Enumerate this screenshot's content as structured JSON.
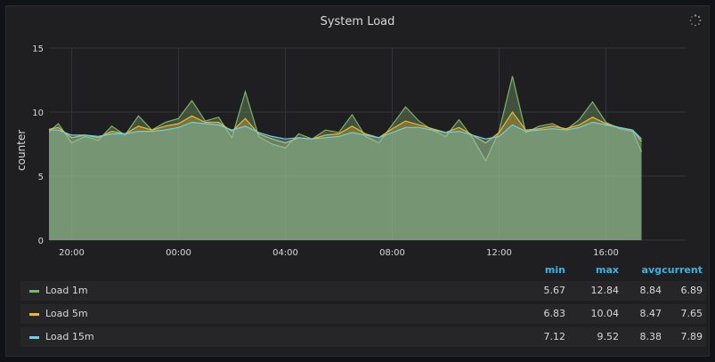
{
  "panel": {
    "title": "System Load"
  },
  "chart_data": {
    "type": "area",
    "title": "System Load",
    "ylabel": "counter",
    "ylim": [
      0,
      15
    ],
    "yticks": [
      "0",
      "5",
      "10",
      "15"
    ],
    "xticks": [
      "20:00",
      "00:00",
      "04:00",
      "08:00",
      "12:00",
      "16:00"
    ],
    "x": [
      "18:00",
      "18:30",
      "19:00",
      "19:30",
      "20:00",
      "20:30",
      "21:00",
      "21:30",
      "22:00",
      "22:30",
      "23:00",
      "23:30",
      "00:00",
      "00:30",
      "01:00",
      "01:30",
      "02:00",
      "02:30",
      "03:00",
      "03:30",
      "04:00",
      "04:30",
      "05:00",
      "05:30",
      "06:00",
      "06:30",
      "07:00",
      "07:30",
      "08:00",
      "08:30",
      "09:00",
      "09:30",
      "10:00",
      "10:30",
      "11:00",
      "11:30",
      "12:00",
      "12:30",
      "13:00",
      "13:30",
      "14:00",
      "14:30",
      "15:00",
      "15:30",
      "16:00",
      "16:30",
      "17:00",
      "17:20"
    ],
    "series": [
      {
        "name": "Load 1m",
        "color": "#7eb26d",
        "values": [
          8.6,
          9.8,
          8.2,
          9.1,
          7.6,
          8.1,
          7.8,
          8.9,
          8.2,
          9.7,
          8.6,
          9.2,
          9.5,
          10.9,
          9.3,
          9.6,
          8.0,
          11.6,
          8.1,
          7.5,
          7.2,
          8.3,
          7.9,
          8.6,
          8.4,
          9.8,
          8.1,
          7.6,
          9.0,
          10.4,
          9.3,
          8.6,
          8.1,
          9.4,
          8.0,
          6.2,
          8.5,
          12.8,
          8.4,
          8.9,
          9.1,
          8.6,
          9.4,
          10.8,
          9.2,
          8.7,
          8.5,
          6.9
        ]
      },
      {
        "name": "Load 5m",
        "color": "#eab839",
        "values": [
          8.7,
          9.3,
          8.6,
          8.8,
          8.0,
          8.2,
          8.0,
          8.5,
          8.3,
          8.9,
          8.6,
          8.9,
          9.1,
          9.7,
          9.2,
          9.2,
          8.5,
          9.5,
          8.3,
          7.9,
          7.6,
          8.0,
          7.9,
          8.2,
          8.3,
          8.9,
          8.3,
          8.0,
          8.7,
          9.3,
          9.0,
          8.7,
          8.4,
          8.8,
          8.2,
          7.6,
          8.4,
          10.0,
          8.6,
          8.7,
          8.9,
          8.7,
          9.0,
          9.6,
          9.1,
          8.8,
          8.6,
          7.7
        ]
      },
      {
        "name": "Load 15m",
        "color": "#6ed0e0",
        "values": [
          8.6,
          8.9,
          8.6,
          8.6,
          8.2,
          8.2,
          8.1,
          8.3,
          8.3,
          8.5,
          8.5,
          8.6,
          8.8,
          9.2,
          9.1,
          9.0,
          8.6,
          8.9,
          8.4,
          8.1,
          7.9,
          8.0,
          7.9,
          8.0,
          8.1,
          8.4,
          8.2,
          8.0,
          8.4,
          8.8,
          8.8,
          8.6,
          8.4,
          8.5,
          8.2,
          7.9,
          8.1,
          9.0,
          8.5,
          8.6,
          8.7,
          8.6,
          8.8,
          9.2,
          9.0,
          8.8,
          8.6,
          7.9
        ]
      }
    ]
  },
  "legend": {
    "headers": {
      "min": "min",
      "max": "max",
      "avg": "avg",
      "current": "current"
    },
    "rows": [
      {
        "name": "Load 1m",
        "color": "#7eb26d",
        "min": "5.67",
        "max": "12.84",
        "avg": "8.84",
        "current": "6.89"
      },
      {
        "name": "Load 5m",
        "color": "#eab839",
        "min": "6.83",
        "max": "10.04",
        "avg": "8.47",
        "current": "7.65"
      },
      {
        "name": "Load 15m",
        "color": "#6ed0e0",
        "min": "7.12",
        "max": "9.52",
        "avg": "8.38",
        "current": "7.89"
      }
    ]
  }
}
